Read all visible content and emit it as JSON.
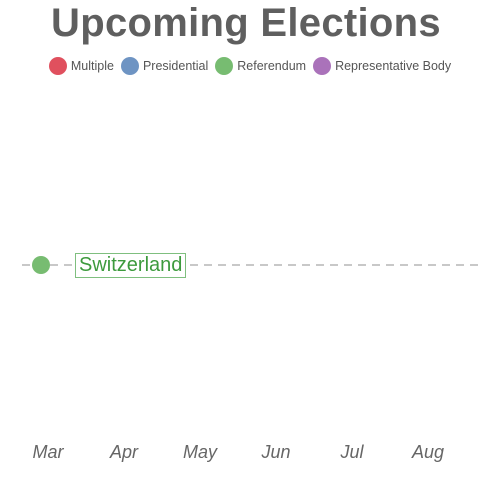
{
  "title": "Upcoming Elections",
  "legend": [
    {
      "label": "Multiple",
      "color": "#e0505e"
    },
    {
      "label": "Presidential",
      "color": "#6e94c3"
    },
    {
      "label": "Referendum",
      "color": "#77bc71"
    },
    {
      "label": "Representative Body",
      "color": "#aa72ba"
    }
  ],
  "months": [
    "Mar",
    "Apr",
    "May",
    "Jun",
    "Jul",
    "Aug"
  ],
  "events": [
    {
      "country": "Switzerland",
      "type": "Referendum",
      "month": "Mar",
      "color": "#77bc71",
      "label_color": "#3d9a3d"
    }
  ]
}
